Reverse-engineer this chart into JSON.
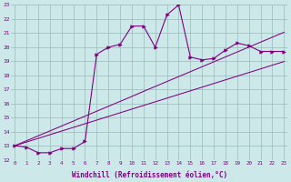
{
  "xlabel": "Windchill (Refroidissement éolien,°C)",
  "x_values": [
    0,
    1,
    2,
    3,
    4,
    5,
    6,
    7,
    8,
    9,
    10,
    11,
    12,
    13,
    14,
    15,
    16,
    17,
    18,
    19,
    20,
    21,
    22,
    23
  ],
  "line1": [
    13.0,
    12.9,
    12.5,
    12.5,
    12.8,
    12.8,
    13.3,
    19.5,
    20.0,
    20.2,
    21.5,
    21.5,
    20.0,
    22.3,
    23.0,
    19.3,
    19.1,
    19.2,
    19.8,
    20.3,
    20.1,
    19.7,
    19.7,
    19.7
  ],
  "line_straight1": [
    13.0,
    13.26,
    13.52,
    13.78,
    14.04,
    14.3,
    14.56,
    14.82,
    15.08,
    15.34,
    15.6,
    15.86,
    16.12,
    16.38,
    16.64,
    16.9,
    17.16,
    17.42,
    17.68,
    17.94,
    18.2,
    18.46,
    18.72,
    18.98
  ],
  "line_straight2": [
    13.0,
    13.35,
    13.7,
    14.05,
    14.4,
    14.75,
    15.1,
    15.45,
    15.8,
    16.15,
    16.5,
    16.86,
    17.21,
    17.56,
    17.91,
    18.26,
    18.61,
    18.96,
    19.31,
    19.66,
    20.01,
    20.36,
    20.71,
    21.06
  ],
  "ylim_min": 12,
  "ylim_max": 23,
  "xlim_min": 0,
  "xlim_max": 23,
  "line_color": "#800080",
  "bg_color": "#cce8e8",
  "grid_color": "#aacccc",
  "grid_major_color": "#99bbbb"
}
